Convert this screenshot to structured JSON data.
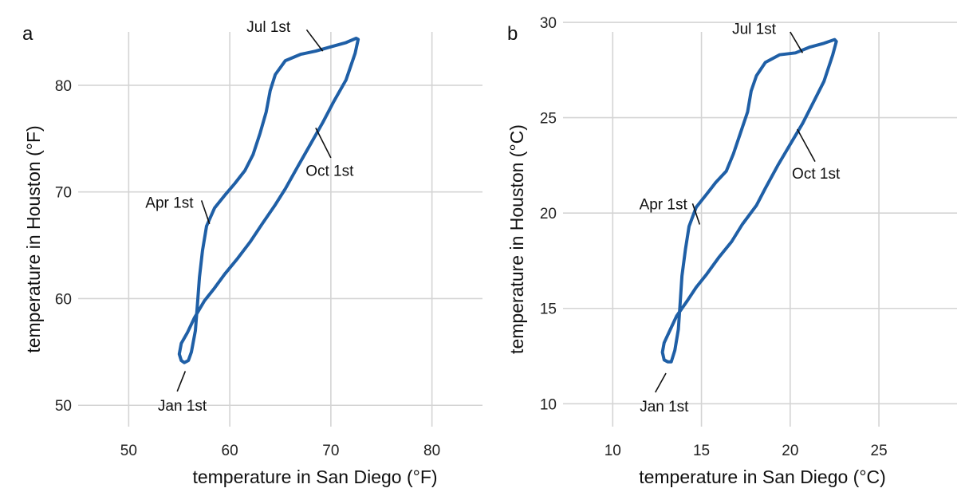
{
  "colors": {
    "series": "#1f5fa6",
    "grid": "#d4d4d4",
    "text": "#111111"
  },
  "chart_data": [
    {
      "type": "line",
      "panel_label": "a",
      "xlabel": "temperature in San Diego (°F)",
      "ylabel": "temperature in Houston (°F)",
      "xlim": [
        45,
        85
      ],
      "ylim": [
        48,
        85
      ],
      "xticks": [
        50,
        60,
        70,
        80
      ],
      "yticks": [
        50,
        60,
        70,
        80
      ],
      "grid": true,
      "series": [
        {
          "points": [
            [
              55.5,
              54.0
            ],
            [
              55.2,
              54.2
            ],
            [
              55.0,
              54.8
            ],
            [
              55.2,
              55.8
            ],
            [
              55.8,
              56.8
            ],
            [
              56.5,
              58.2
            ],
            [
              57.5,
              59.8
            ],
            [
              58.5,
              61.0
            ],
            [
              59.5,
              62.3
            ],
            [
              60.8,
              63.8
            ],
            [
              62.0,
              65.3
            ],
            [
              63.2,
              67.0
            ],
            [
              64.5,
              68.8
            ],
            [
              65.5,
              70.3
            ],
            [
              66.8,
              72.5
            ],
            [
              68.0,
              74.5
            ],
            [
              69.2,
              76.5
            ],
            [
              70.3,
              78.5
            ],
            [
              71.5,
              80.5
            ],
            [
              72.4,
              83.0
            ],
            [
              72.7,
              84.3
            ],
            [
              72.5,
              84.4
            ],
            [
              71.5,
              84.0
            ],
            [
              70.0,
              83.6
            ],
            [
              68.5,
              83.2
            ],
            [
              67.0,
              82.9
            ],
            [
              65.5,
              82.3
            ],
            [
              64.5,
              81.0
            ],
            [
              64.0,
              79.5
            ],
            [
              63.6,
              77.5
            ],
            [
              63.0,
              75.5
            ],
            [
              62.3,
              73.5
            ],
            [
              61.5,
              72.0
            ],
            [
              60.5,
              70.8
            ],
            [
              59.6,
              69.8
            ],
            [
              58.5,
              68.5
            ],
            [
              57.7,
              66.8
            ],
            [
              57.3,
              64.5
            ],
            [
              57.0,
              62.0
            ],
            [
              56.8,
              59.5
            ],
            [
              56.6,
              57.0
            ],
            [
              56.2,
              55.0
            ],
            [
              55.9,
              54.2
            ],
            [
              55.5,
              54.0
            ]
          ]
        }
      ],
      "annotations": [
        {
          "text": "Jul 1st",
          "x": 69.2,
          "y": 83.2,
          "tx": 66.0,
          "ty": 85.0,
          "lx1": 67.6,
          "ly1": 85.2,
          "anchor": "end"
        },
        {
          "text": "Oct 1st",
          "x": 68.5,
          "y": 76.0,
          "tx": 67.5,
          "ty": 71.5,
          "lx1": 70.0,
          "ly1": 73.2,
          "anchor": "start"
        },
        {
          "text": "Apr 1st",
          "x": 58.0,
          "y": 67.0,
          "tx": 56.4,
          "ty": 68.5,
          "lx1": 57.2,
          "ly1": 69.2,
          "anchor": "end"
        },
        {
          "text": "Jan 1st",
          "x": 55.6,
          "y": 53.2,
          "tx": 55.3,
          "ty": 49.5,
          "lx1": 54.8,
          "ly1": 51.3,
          "anchor": "middle"
        }
      ]
    },
    {
      "type": "line",
      "panel_label": "b",
      "xlabel": "temperature in San Diego (°C)",
      "ylabel": "temperature in Houston (°C)",
      "xlim": [
        7.2,
        29.4
      ],
      "ylim": [
        8.8,
        29.5
      ],
      "xticks": [
        10,
        15,
        20,
        25
      ],
      "yticks": [
        10,
        15,
        20,
        25,
        30
      ],
      "grid": true,
      "series": [
        {
          "points": [
            [
              13.1,
              12.2
            ],
            [
              12.9,
              12.3
            ],
            [
              12.8,
              12.7
            ],
            [
              12.9,
              13.2
            ],
            [
              13.2,
              13.8
            ],
            [
              13.6,
              14.6
            ],
            [
              14.2,
              15.4
            ],
            [
              14.7,
              16.1
            ],
            [
              15.3,
              16.8
            ],
            [
              16.0,
              17.7
            ],
            [
              16.7,
              18.5
            ],
            [
              17.3,
              19.4
            ],
            [
              18.1,
              20.4
            ],
            [
              18.6,
              21.3
            ],
            [
              19.3,
              22.5
            ],
            [
              20.0,
              23.6
            ],
            [
              20.7,
              24.7
            ],
            [
              21.3,
              25.8
            ],
            [
              21.9,
              26.9
            ],
            [
              22.4,
              28.3
            ],
            [
              22.6,
              29.0
            ],
            [
              22.5,
              29.1
            ],
            [
              21.9,
              28.9
            ],
            [
              21.1,
              28.7
            ],
            [
              20.3,
              28.4
            ],
            [
              19.4,
              28.3
            ],
            [
              18.6,
              27.9
            ],
            [
              18.1,
              27.2
            ],
            [
              17.8,
              26.4
            ],
            [
              17.6,
              25.3
            ],
            [
              17.2,
              24.2
            ],
            [
              16.8,
              23.1
            ],
            [
              16.4,
              22.2
            ],
            [
              15.8,
              21.6
            ],
            [
              15.3,
              21.0
            ],
            [
              14.7,
              20.3
            ],
            [
              14.3,
              19.3
            ],
            [
              14.1,
              18.1
            ],
            [
              13.9,
              16.7
            ],
            [
              13.8,
              15.3
            ],
            [
              13.7,
              13.9
            ],
            [
              13.5,
              12.8
            ],
            [
              13.3,
              12.2
            ],
            [
              13.1,
              12.2
            ]
          ]
        }
      ],
      "annotations": [
        {
          "text": "Jul 1st",
          "x": 20.7,
          "y": 28.4,
          "tx": 19.2,
          "ty": 29.4,
          "lx1": 20.0,
          "ly1": 29.5,
          "anchor": "end"
        },
        {
          "text": "Oct 1st",
          "x": 20.4,
          "y": 24.4,
          "tx": 20.1,
          "ty": 21.8,
          "lx1": 21.4,
          "ly1": 22.7,
          "anchor": "start"
        },
        {
          "text": "Apr 1st",
          "x": 14.9,
          "y": 19.4,
          "tx": 14.2,
          "ty": 20.2,
          "lx1": 14.5,
          "ly1": 20.5,
          "anchor": "end"
        },
        {
          "text": "Jan 1st",
          "x": 13.0,
          "y": 11.6,
          "tx": 12.9,
          "ty": 9.6,
          "lx1": 12.4,
          "ly1": 10.6,
          "anchor": "middle"
        }
      ]
    }
  ]
}
